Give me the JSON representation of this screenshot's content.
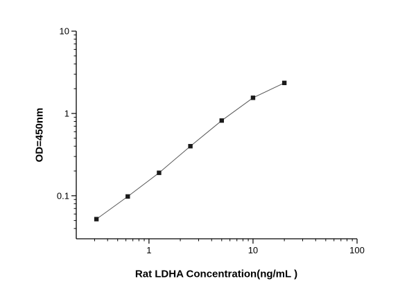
{
  "chart_data": {
    "type": "line",
    "title": "",
    "xlabel": "Rat LDHA Concentration(ng/mL )",
    "ylabel": "OD=450nm",
    "x": [
      0.3125,
      0.625,
      1.25,
      2.5,
      5,
      10,
      20
    ],
    "y": [
      0.052,
      0.098,
      0.19,
      0.4,
      0.82,
      1.55,
      2.35
    ],
    "x_scale": "log",
    "y_scale": "log",
    "xlim": [
      0.2,
      100
    ],
    "ylim": [
      0.03,
      10
    ],
    "x_major_ticks": [
      1,
      10,
      100
    ],
    "x_tick_labels": [
      "1",
      "10",
      "100"
    ],
    "y_major_ticks": [
      0.1,
      1,
      10
    ],
    "y_tick_labels": [
      "0.1",
      "1",
      "10"
    ],
    "marker": "square",
    "marker_color": "#1a1a1a",
    "line_color": "#555555",
    "axis_color": "#000000",
    "grid": false,
    "legend": false
  }
}
